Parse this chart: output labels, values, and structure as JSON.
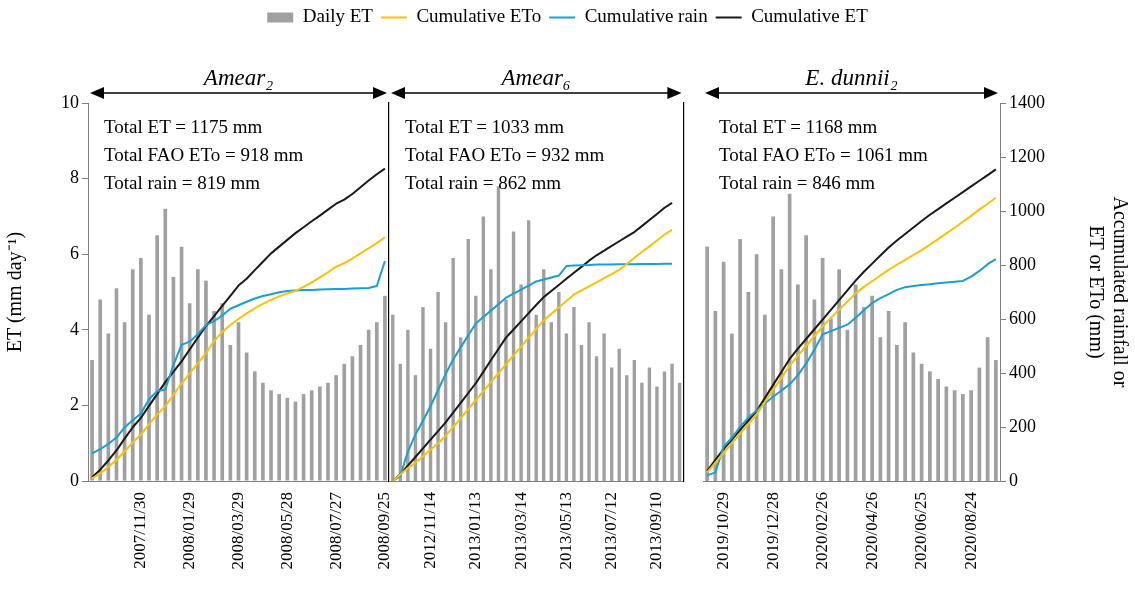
{
  "chart_data": [
    {
      "type": "bar",
      "title": "Amear₂",
      "legend": "top",
      "grid": false,
      "categories": [
        null,
        null,
        null,
        null,
        null,
        null,
        "2007/11/30",
        null,
        null,
        null,
        null,
        null,
        "2008/01/29",
        null,
        null,
        null,
        null,
        null,
        "2008/03/29",
        null,
        null,
        null,
        null,
        null,
        "2008/05/28",
        null,
        null,
        null,
        null,
        null,
        "2008/07/27",
        null,
        null,
        null,
        null,
        null,
        "2008/09/25"
      ],
      "ylim": [
        0,
        10
      ],
      "yticks": [
        0,
        2,
        4,
        6,
        8,
        10
      ],
      "y2lim": [
        0,
        1400
      ],
      "ylabel": "ET (mm day⁻¹)",
      "annotations": [
        "Total ET = 1175 mm",
        "Total FAO ETo = 918 mm",
        "Total rain = 819 mm"
      ],
      "series": [
        {
          "name": "Daily ET",
          "color": "#a0a0a0",
          "values": [
            3.2,
            4.8,
            3.9,
            5.1,
            4.2,
            5.6,
            5.9,
            4.4,
            6.5,
            7.2,
            5.4,
            6.2,
            4.7,
            5.6,
            5.3,
            4.5,
            4.7,
            3.6,
            4.2,
            3.4,
            2.9,
            2.6,
            2.4,
            2.3,
            2.2,
            2.1,
            2.3,
            2.4,
            2.5,
            2.6,
            2.8,
            3.1,
            3.3,
            3.6,
            4.0,
            4.2,
            4.9
          ]
        },
        {
          "name": "Cumulative ETo",
          "type": "line",
          "axis": "y2",
          "color": "#ffc000",
          "values": [
            10,
            28,
            52,
            78,
            110,
            142,
            172,
            211,
            246,
            277,
            319,
            361,
            399,
            436,
            474,
            518,
            552,
            578,
            600,
            621,
            639,
            656,
            671,
            684,
            695,
            704,
            719,
            736,
            754,
            773,
            794,
            807,
            824,
            843,
            862,
            881,
            903
          ]
        },
        {
          "name": "Cumulative rain",
          "type": "line",
          "axis": "y2",
          "color": "#16a0d8",
          "values": [
            102,
            118,
            137,
            161,
            199,
            225,
            250,
            303,
            333,
            339,
            430,
            504,
            516,
            544,
            577,
            592,
            613,
            638,
            651,
            664,
            676,
            685,
            692,
            699,
            704,
            706,
            707,
            707,
            709,
            710,
            711,
            711,
            713,
            714,
            715,
            722,
            815
          ]
        },
        {
          "name": "Cumulative ET",
          "type": "line",
          "axis": "y2",
          "color": "#1a1a1a",
          "values": [
            14,
            42,
            76,
            113,
            157,
            199,
            234,
            278,
            322,
            366,
            404,
            443,
            487,
            531,
            574,
            611,
            649,
            686,
            724,
            749,
            781,
            812,
            843,
            868,
            893,
            918,
            940,
            962,
            983,
            1005,
            1027,
            1042,
            1063,
            1088,
            1113,
            1136,
            1157
          ]
        }
      ]
    },
    {
      "type": "bar",
      "title": "Amear₆",
      "grid": false,
      "tick_labels": "x",
      "categories": [
        null,
        null,
        null,
        null,
        null,
        "2012/11/14",
        null,
        null,
        null,
        null,
        null,
        "2013/01/13",
        null,
        null,
        null,
        null,
        null,
        "2013/03/14",
        null,
        null,
        null,
        null,
        null,
        "2013/05/13",
        null,
        null,
        null,
        null,
        null,
        "2013/07/12",
        null,
        null,
        null,
        null,
        null,
        "2013/09/10",
        null,
        null,
        null
      ],
      "ylim": [
        0,
        10
      ],
      "y2lim": [
        0,
        1400
      ],
      "annotations": [
        "Total ET = 1033 mm",
        "Total FAO ETo = 932 mm",
        "Total rain = 862 mm"
      ],
      "series": [
        {
          "color": "#a0a0a0",
          "values": [
            4.4,
            3.1,
            4.0,
            2.8,
            4.6,
            3.5,
            5.0,
            4.2,
            5.9,
            3.8,
            6.4,
            4.9,
            7.0,
            5.6,
            7.8,
            4.8,
            6.6,
            5.2,
            6.9,
            4.4,
            5.6,
            4.2,
            5.0,
            3.9,
            4.6,
            3.6,
            4.2,
            3.3,
            3.9,
            3.0,
            3.5,
            2.8,
            3.2,
            2.6,
            3.0,
            2.5,
            2.9,
            3.1,
            2.6
          ]
        },
        {
          "type": "line",
          "axis": "y2",
          "color": "#ffc000",
          "values": [
            0,
            24,
            48,
            68,
            92,
            116,
            140,
            167,
            200,
            233,
            266,
            299,
            332,
            366,
            399,
            432,
            465,
            498,
            531,
            563,
            595,
            619,
            643,
            667,
            691,
            706,
            721,
            736,
            751,
            766,
            782,
            804,
            826,
            848,
            869,
            891,
            913,
            930,
            null
          ]
        },
        {
          "type": "line",
          "axis": "y2",
          "color": "#16a0d8",
          "values": [
            0,
            18,
            109,
            172,
            223,
            277,
            337,
            396,
            450,
            495,
            540,
            583,
            607,
            631,
            655,
            679,
            694,
            709,
            724,
            739,
            746,
            754,
            761,
            796,
            798,
            799,
            800,
            802,
            802,
            802,
            803,
            803,
            803,
            804,
            804,
            804,
            805,
            805,
            null
          ]
        },
        {
          "type": "line",
          "axis": "y2",
          "color": "#1a1a1a",
          "values": [
            0,
            25,
            57,
            89,
            121,
            153,
            185,
            217,
            253,
            289,
            326,
            362,
            404,
            447,
            489,
            531,
            561,
            591,
            622,
            652,
            681,
            704,
            726,
            749,
            771,
            793,
            816,
            836,
            853,
            871,
            888,
            905,
            922,
            944,
            967,
            989,
            1012,
            1030,
            null
          ]
        }
      ]
    },
    {
      "type": "bar",
      "title": "E. dunnii₂",
      "grid": false,
      "categories": [
        null,
        null,
        "2019/10/29",
        null,
        null,
        null,
        null,
        null,
        "2019/12/28",
        null,
        null,
        null,
        null,
        null,
        "2020/02/26",
        null,
        null,
        null,
        null,
        null,
        "2020/04/26",
        null,
        null,
        null,
        null,
        null,
        "2020/06/25",
        null,
        null,
        null,
        null,
        null,
        "2020/08/24",
        null,
        null,
        null
      ],
      "ylim": [
        0,
        10
      ],
      "y2lim": [
        0,
        1400
      ],
      "y2ticks": [
        0,
        200,
        400,
        600,
        800,
        1000,
        1200,
        1400
      ],
      "y2label": "Accumulated rainfall or ET or ETo (mm)",
      "annotations": [
        "Total ET = 1168 mm",
        "Total FAO ETo = 1061 mm",
        "Total rain = 846 mm"
      ],
      "series": [
        {
          "color": "#a0a0a0",
          "values": [
            6.2,
            4.5,
            5.8,
            3.9,
            6.4,
            5.0,
            6.0,
            4.4,
            7.0,
            5.6,
            7.6,
            5.2,
            6.5,
            4.8,
            5.9,
            4.3,
            5.6,
            4.0,
            5.2,
            4.6,
            4.9,
            3.8,
            4.5,
            3.6,
            4.2,
            3.4,
            3.1,
            2.9,
            2.7,
            2.5,
            2.4,
            2.3,
            2.4,
            3.0,
            3.8,
            3.2
          ]
        },
        {
          "type": "line",
          "axis": "y2",
          "color": "#ffc000",
          "values": [
            32,
            68,
            104,
            140,
            175,
            211,
            247,
            292,
            337,
            382,
            427,
            464,
            500,
            537,
            573,
            604,
            634,
            664,
            695,
            719,
            740,
            761,
            782,
            801,
            819,
            837,
            855,
            875,
            896,
            917,
            938,
            960,
            982,
            1005,
            1027,
            1049
          ]
        },
        {
          "type": "line",
          "axis": "y2",
          "color": "#16a0d8",
          "values": [
            21,
            32,
            127,
            160,
            201,
            235,
            261,
            287,
            312,
            335,
            358,
            392,
            435,
            486,
            543,
            555,
            567,
            579,
            605,
            632,
            659,
            677,
            692,
            708,
            718,
            722,
            726,
            729,
            732,
            735,
            738,
            741,
            757,
            778,
            803,
            822
          ]
        },
        {
          "type": "line",
          "axis": "y2",
          "color": "#1a1a1a",
          "values": [
            37,
            78,
            118,
            153,
            189,
            224,
            259,
            307,
            356,
            404,
            452,
            490,
            526,
            562,
            598,
            634,
            670,
            706,
            742,
            775,
            805,
            835,
            865,
            891,
            915,
            939,
            963,
            986,
            1007,
            1028,
            1049,
            1070,
            1091,
            1112,
            1133,
            1154
          ]
        }
      ]
    }
  ]
}
